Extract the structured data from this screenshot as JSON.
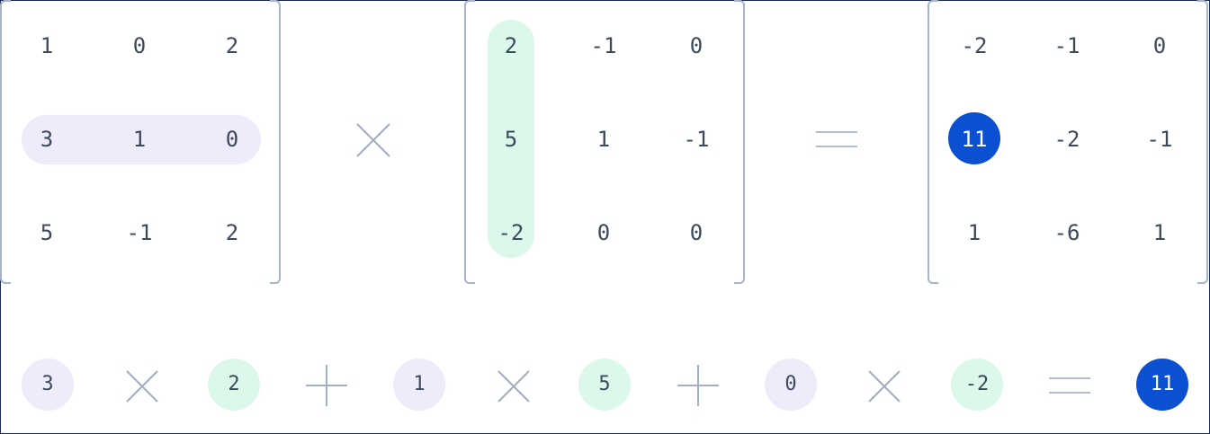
{
  "matrix_a": {
    "rows": [
      [
        "1",
        "0",
        "2"
      ],
      [
        "3",
        "1",
        "0"
      ],
      [
        "5",
        "-1",
        "2"
      ]
    ],
    "highlighted_row": 1
  },
  "matrix_b": {
    "rows": [
      [
        "2",
        "-1",
        "0"
      ],
      [
        "5",
        "1",
        "-1"
      ],
      [
        "-2",
        "0",
        "0"
      ]
    ],
    "highlighted_column": 0
  },
  "matrix_result": {
    "rows": [
      [
        "-2",
        "-1",
        "0"
      ],
      [
        "11",
        "-2",
        "-1"
      ],
      [
        "1",
        "-6",
        "1"
      ]
    ],
    "highlighted_cell": [
      1,
      0
    ]
  },
  "equation": {
    "terms": [
      "3",
      "2",
      "1",
      "5",
      "0",
      "-2"
    ],
    "result": "11"
  },
  "colors": {
    "row_highlight": "#eeebfb",
    "column_highlight": "#dcf8ea",
    "result_highlight": "#0b50d0",
    "text": "#3d4a5c",
    "operator": "#a2aec2"
  },
  "icons": {
    "multiply": "times-icon",
    "add": "plus-icon",
    "equals": "equals-icon"
  }
}
